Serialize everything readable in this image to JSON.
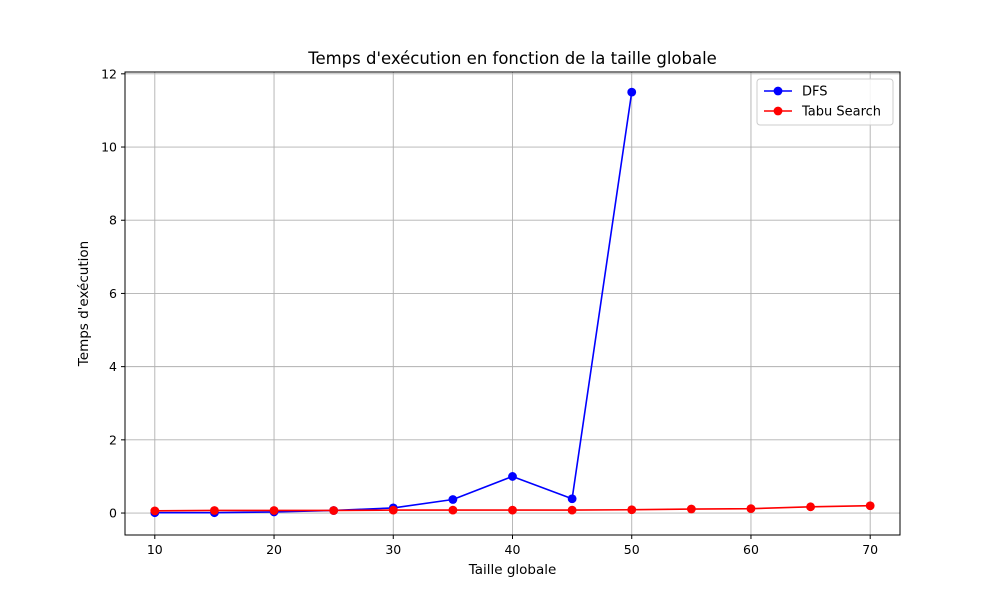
{
  "chart_data": {
    "type": "line",
    "title": "Temps d'exécution en fonction de la taille globale",
    "xlabel": "Taille globale",
    "ylabel": "Temps d'exécution",
    "xlim": [
      7.5,
      72.5
    ],
    "ylim": [
      -0.6,
      12.05
    ],
    "xticks": [
      10,
      20,
      30,
      40,
      50,
      60,
      70
    ],
    "yticks": [
      0,
      2,
      4,
      6,
      8,
      10,
      12
    ],
    "grid": true,
    "legend_position": "top-right",
    "series": [
      {
        "name": "DFS",
        "color": "#0000ff",
        "marker": "circle",
        "x": [
          10,
          15,
          20,
          25,
          30,
          35,
          40,
          45,
          50
        ],
        "y": [
          0.01,
          0.01,
          0.03,
          0.07,
          0.14,
          0.37,
          1.0,
          0.39,
          11.5
        ]
      },
      {
        "name": "Tabu Search",
        "color": "#ff0000",
        "marker": "circle",
        "x": [
          10,
          15,
          20,
          25,
          30,
          35,
          40,
          45,
          50,
          55,
          60,
          65,
          70
        ],
        "y": [
          0.06,
          0.07,
          0.07,
          0.07,
          0.08,
          0.08,
          0.08,
          0.08,
          0.09,
          0.11,
          0.12,
          0.17,
          0.2
        ]
      }
    ]
  }
}
